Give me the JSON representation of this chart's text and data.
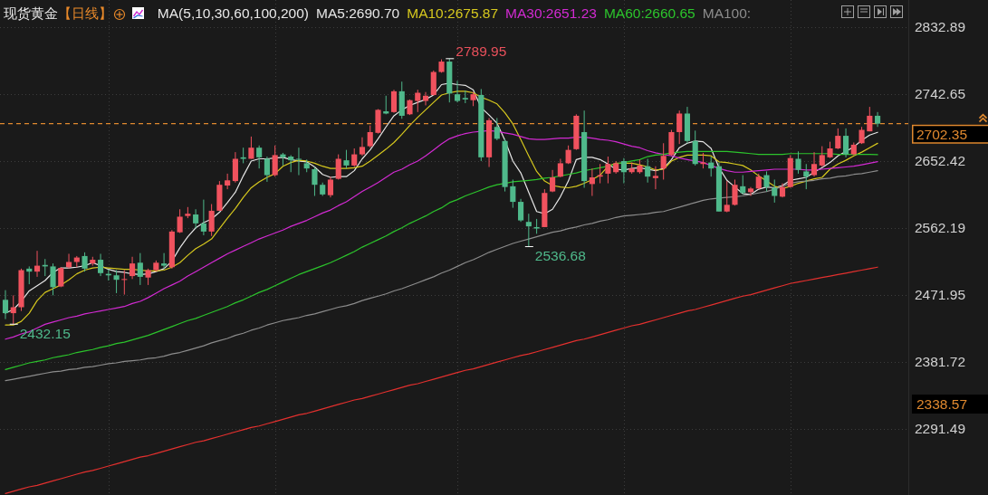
{
  "chart_data": {
    "type": "candlestick",
    "title": "现货黄金",
    "subtitle": "【日线】",
    "legend_title": "MA(5,10,30,60,100,200)",
    "legend": "top",
    "grid": "y",
    "ylim": [
      2202,
      2869
    ],
    "yticks": [
      2291.49,
      2381.72,
      2471.95,
      2562.19,
      2652.42,
      2742.65,
      2832.89
    ],
    "categories": [
      null,
      null,
      null,
      null,
      null,
      null,
      null,
      null,
      null,
      null,
      null,
      null,
      null,
      null,
      null,
      null,
      null,
      null,
      null,
      null,
      null,
      null,
      null,
      null,
      null,
      null,
      null,
      null,
      null,
      null,
      null,
      null,
      null,
      null,
      null,
      null,
      null,
      null,
      null,
      null,
      null,
      null,
      null,
      null,
      null,
      null,
      null,
      null,
      null,
      null,
      null,
      null,
      null,
      null,
      null,
      null,
      null,
      null,
      null,
      null,
      null,
      null,
      null,
      null,
      null,
      null,
      null,
      null,
      null,
      null,
      null,
      null,
      null,
      null,
      null,
      null,
      null,
      null,
      null,
      null,
      null,
      null,
      null,
      null,
      null,
      null,
      null,
      null,
      null,
      null,
      null,
      null,
      null,
      null,
      null,
      null,
      null,
      null,
      null,
      null,
      null,
      null,
      null,
      null,
      null,
      null,
      null,
      null,
      null,
      null,
      null
    ],
    "ohlc": [
      [
        2465,
        2478,
        2439,
        2447
      ],
      [
        2447,
        2471,
        2432.15,
        2455
      ],
      [
        2455,
        2507,
        2450,
        2505
      ],
      [
        2507,
        2510,
        2486,
        2503
      ],
      [
        2503,
        2531,
        2496,
        2511
      ],
      [
        2512,
        2520,
        2497,
        2510
      ],
      [
        2510,
        2514,
        2471,
        2482
      ],
      [
        2483,
        2509,
        2482,
        2508
      ],
      [
        2509,
        2527,
        2507,
        2516
      ],
      [
        2516,
        2524,
        2509,
        2522
      ],
      [
        2524,
        2529,
        2503,
        2507
      ],
      [
        2514,
        2523,
        2511,
        2519
      ],
      [
        2519,
        2527,
        2497,
        2501
      ],
      [
        2500,
        2506,
        2491,
        2498
      ],
      [
        2498,
        2505,
        2474,
        2492
      ],
      [
        2492,
        2505,
        2472,
        2493
      ],
      [
        2497,
        2523,
        2493,
        2514
      ],
      [
        2515,
        2528,
        2485,
        2496
      ],
      [
        2495,
        2507,
        2485,
        2505
      ],
      [
        2505,
        2518,
        2503,
        2515
      ],
      [
        2514,
        2528,
        2507,
        2511
      ],
      [
        2509,
        2559,
        2507,
        2557
      ],
      [
        2556,
        2587,
        2555,
        2577
      ],
      [
        2578,
        2590,
        2575,
        2581
      ],
      [
        2580,
        2587,
        2561,
        2568
      ],
      [
        2568,
        2600,
        2552,
        2557
      ],
      [
        2557,
        2594,
        2551,
        2585
      ],
      [
        2585,
        2625,
        2585,
        2620
      ],
      [
        2619,
        2635,
        2614,
        2626
      ],
      [
        2625,
        2664,
        2623,
        2655
      ],
      [
        2657,
        2670,
        2649,
        2655
      ],
      [
        2655,
        2685,
        2655,
        2670
      ],
      [
        2670,
        2673,
        2642,
        2657
      ],
      [
        2655,
        2658,
        2624,
        2633
      ],
      [
        2633,
        2673,
        2631,
        2660
      ],
      [
        2661,
        2663,
        2646,
        2657
      ],
      [
        2658,
        2660,
        2637,
        2653
      ],
      [
        2655,
        2670,
        2633,
        2654
      ],
      [
        2649,
        2654,
        2637,
        2642
      ],
      [
        2641,
        2644,
        2605,
        2620
      ],
      [
        2620,
        2623,
        2605,
        2607
      ],
      [
        2606,
        2631,
        2603,
        2627
      ],
      [
        2628,
        2661,
        2627,
        2655
      ],
      [
        2653,
        2667,
        2642,
        2646
      ],
      [
        2646,
        2669,
        2644,
        2661
      ],
      [
        2661,
        2684,
        2659,
        2671
      ],
      [
        2672,
        2700,
        2670,
        2691
      ],
      [
        2690,
        2722,
        2689,
        2721
      ],
      [
        2719,
        2740,
        2715,
        2716
      ],
      [
        2718,
        2748,
        2717,
        2746
      ],
      [
        2746,
        2759,
        2709,
        2713
      ],
      [
        2715,
        2735,
        2714,
        2734
      ],
      [
        2733,
        2748,
        2718,
        2744
      ],
      [
        2733,
        2745,
        2727,
        2740
      ],
      [
        2741,
        2774,
        2740,
        2772
      ],
      [
        2772,
        2789,
        2771,
        2786
      ],
      [
        2786,
        2789.95,
        2731,
        2743
      ],
      [
        2742,
        2760,
        2731,
        2733
      ],
      [
        2737,
        2747,
        2730,
        2735
      ],
      [
        2734,
        2745,
        2726,
        2742
      ],
      [
        2741,
        2749,
        2652,
        2657
      ],
      [
        2657,
        2710,
        2644,
        2707
      ],
      [
        2698,
        2710,
        2680,
        2682
      ],
      [
        2679,
        2682,
        2611,
        2617
      ],
      [
        2618,
        2627,
        2589,
        2597
      ],
      [
        2597,
        2601,
        2570,
        2572
      ],
      [
        2570,
        2581,
        2536.68,
        2564
      ],
      [
        2563,
        2574,
        2554,
        2561
      ],
      [
        2563,
        2614,
        2563,
        2609
      ],
      [
        2611,
        2640,
        2610,
        2630
      ],
      [
        2631,
        2655,
        2630,
        2649
      ],
      [
        2649,
        2673,
        2648,
        2667
      ],
      [
        2668,
        2715,
        2667,
        2713
      ],
      [
        2691,
        2720,
        2616,
        2625
      ],
      [
        2621,
        2642,
        2605,
        2630
      ],
      [
        2631,
        2648,
        2622,
        2633
      ],
      [
        2635,
        2658,
        2622,
        2648
      ],
      [
        2637,
        2652,
        2635,
        2649
      ],
      [
        2652,
        2656,
        2622,
        2637
      ],
      [
        2637,
        2650,
        2635,
        2642
      ],
      [
        2637,
        2654,
        2635,
        2646
      ],
      [
        2645,
        2655,
        2623,
        2631
      ],
      [
        2629,
        2645,
        2614,
        2632
      ],
      [
        2642,
        2676,
        2627,
        2659
      ],
      [
        2660,
        2694,
        2659,
        2691
      ],
      [
        2691,
        2720,
        2675,
        2716
      ],
      [
        2716,
        2725,
        2676,
        2679
      ],
      [
        2679,
        2693,
        2646,
        2648
      ],
      [
        2648,
        2663,
        2642,
        2650
      ],
      [
        2650,
        2658,
        2631,
        2642
      ],
      [
        2645,
        2650,
        2584,
        2584
      ],
      [
        2584,
        2625,
        2583,
        2593
      ],
      [
        2593,
        2627,
        2592,
        2620
      ],
      [
        2618,
        2633,
        2607,
        2609
      ],
      [
        2610,
        2617,
        2605,
        2615
      ],
      [
        2615,
        2635,
        2614,
        2631
      ],
      [
        2633,
        2638,
        2611,
        2617
      ],
      [
        2616,
        2627,
        2596,
        2605
      ],
      [
        2604,
        2622,
        2603,
        2617
      ],
      [
        2617,
        2660,
        2616,
        2656
      ],
      [
        2655,
        2665,
        2635,
        2640
      ],
      [
        2638,
        2648,
        2614,
        2631
      ],
      [
        2633,
        2664,
        2631,
        2648
      ],
      [
        2646,
        2672,
        2644,
        2660
      ],
      [
        2657,
        2678,
        2656,
        2669
      ],
      [
        2669,
        2696,
        2668,
        2686
      ],
      [
        2686,
        2696,
        2657,
        2661
      ],
      [
        2661,
        2677,
        2660,
        2674
      ],
      [
        2676,
        2698,
        2675,
        2694
      ],
      [
        2692,
        2725,
        2692,
        2713
      ],
      [
        2713,
        2718,
        2698,
        2702.35
      ]
    ],
    "colors": [
      "#4fb98b",
      "#f0525e",
      "#f0525e",
      "#4fb98b",
      "#f0525e",
      "#4fb98b",
      "#4fb98b",
      "#f0525e",
      "#f0525e",
      "#f0525e",
      "#4fb98b",
      "#f0525e",
      "#4fb98b",
      "#4fb98b",
      "#4fb98b",
      "#f0525e",
      "#f0525e",
      "#4fb98b",
      "#f0525e",
      "#f0525e",
      "#4fb98b",
      "#f0525e",
      "#f0525e",
      "#f0525e",
      "#4fb98b",
      "#4fb98b",
      "#f0525e",
      "#f0525e",
      "#f0525e",
      "#f0525e",
      "#4fb98b",
      "#f0525e",
      "#4fb98b",
      "#4fb98b",
      "#f0525e",
      "#4fb98b",
      "#4fb98b",
      "#4fb98b",
      "#4fb98b",
      "#4fb98b",
      "#4fb98b",
      "#f0525e",
      "#f0525e",
      "#4fb98b",
      "#f0525e",
      "#f0525e",
      "#f0525e",
      "#f0525e",
      "#4fb98b",
      "#f0525e",
      "#4fb98b",
      "#f0525e",
      "#f0525e",
      "#f0525e",
      "#f0525e",
      "#f0525e",
      "#4fb98b",
      "#4fb98b",
      "#4fb98b",
      "#f0525e",
      "#4fb98b",
      "#f0525e",
      "#4fb98b",
      "#4fb98b",
      "#4fb98b",
      "#4fb98b",
      "#4fb98b",
      "#4fb98b",
      "#f0525e",
      "#f0525e",
      "#f0525e",
      "#f0525e",
      "#f0525e",
      "#4fb98b",
      "#f0525e",
      "#f0525e",
      "#f0525e",
      "#f0525e",
      "#4fb98b",
      "#f0525e",
      "#f0525e",
      "#4fb98b",
      "#f0525e",
      "#f0525e",
      "#f0525e",
      "#f0525e",
      "#4fb98b",
      "#4fb98b",
      "#f0525e",
      "#4fb98b",
      "#4fb98b",
      "#f0525e",
      "#f0525e",
      "#4fb98b",
      "#f0525e",
      "#f0525e",
      "#4fb98b",
      "#4fb98b",
      "#f0525e",
      "#f0525e",
      "#4fb98b",
      "#4fb98b",
      "#f0525e",
      "#f0525e",
      "#f0525e",
      "#f0525e",
      "#4fb98b",
      "#f0525e",
      "#f0525e",
      "#f0525e",
      "#4fb98b"
    ],
    "series": [
      {
        "name": "MA5:2690.70",
        "type": "line",
        "color": "#e6e6e6",
        "values": [
          2447,
          2452,
          2463,
          2477,
          2484,
          2491,
          2502,
          2508,
          2508,
          2509,
          2511,
          2515,
          2511,
          2506,
          2503,
          2502,
          2500,
          2499,
          2500,
          2503,
          2507,
          2517,
          2535,
          2550,
          2562,
          2569,
          2574,
          2583,
          2596,
          2610,
          2632,
          2652,
          2655,
          2655,
          2656,
          2657,
          2654,
          2652,
          2651,
          2644,
          2634,
          2630,
          2631,
          2631,
          2639,
          2655,
          2667,
          2682,
          2698,
          2713,
          2721,
          2727,
          2731,
          2735,
          2741,
          2755,
          2757,
          2755,
          2754,
          2748,
          2724,
          2714,
          2703,
          2680,
          2652,
          2636,
          2610,
          2584,
          2581,
          2587,
          2604,
          2625,
          2654,
          2657,
          2657,
          2654,
          2648,
          2641,
          2640,
          2642,
          2643,
          2641,
          2639,
          2642,
          2654,
          2670,
          2676,
          2679,
          2678,
          2669,
          2643,
          2626,
          2617,
          2608,
          2607,
          2614,
          2617,
          2616,
          2619,
          2626,
          2628,
          2630,
          2637,
          2643,
          2650,
          2659,
          2665,
          2671,
          2680,
          2687,
          2690.7
        ]
      },
      {
        "name": "MA10:2675.87",
        "type": "line",
        "color": "#d6c81e",
        "values": [
          2431,
          2431,
          2436,
          2447,
          2464,
          2475,
          2480,
          2485,
          2492,
          2500,
          2505,
          2508,
          2509,
          2508,
          2507,
          2506,
          2506,
          2505,
          2504,
          2504,
          2505,
          2509,
          2515,
          2525,
          2534,
          2540,
          2547,
          2561,
          2575,
          2588,
          2603,
          2616,
          2624,
          2630,
          2635,
          2645,
          2650,
          2653,
          2652,
          2649,
          2645,
          2642,
          2642,
          2642,
          2643,
          2645,
          2652,
          2660,
          2668,
          2677,
          2688,
          2700,
          2711,
          2721,
          2731,
          2741,
          2744,
          2746,
          2746,
          2744,
          2738,
          2734,
          2729,
          2717,
          2702,
          2681,
          2659,
          2638,
          2625,
          2619,
          2617,
          2616,
          2618,
          2622,
          2627,
          2633,
          2645,
          2649,
          2649,
          2649,
          2647,
          2644,
          2640,
          2641,
          2652,
          2657,
          2660,
          2660,
          2660,
          2659,
          2651,
          2650,
          2648,
          2646,
          2640,
          2632,
          2625,
          2618,
          2615,
          2618,
          2622,
          2625,
          2628,
          2630,
          2641,
          2648,
          2653,
          2659,
          2664,
          2670,
          2675.87
        ]
      },
      {
        "name": "MA30:2651.23",
        "type": "line",
        "color": "#d22ad2",
        "values": [
          2412,
          2415,
          2419,
          2422,
          2427,
          2432,
          2435,
          2438,
          2441,
          2443,
          2446,
          2448,
          2450,
          2452,
          2454,
          2456,
          2460,
          2463,
          2468,
          2474,
          2480,
          2485,
          2490,
          2497,
          2503,
          2509,
          2515,
          2521,
          2527,
          2532,
          2537,
          2542,
          2547,
          2551,
          2555,
          2559,
          2564,
          2568,
          2572,
          2577,
          2582,
          2586,
          2592,
          2597,
          2604,
          2611,
          2617,
          2623,
          2630,
          2637,
          2641,
          2647,
          2652,
          2659,
          2667,
          2675,
          2682,
          2686,
          2689,
          2691,
          2692,
          2693,
          2692,
          2690,
          2688,
          2685,
          2682,
          2681,
          2681,
          2682,
          2683,
          2683,
          2684,
          2684,
          2683,
          2681,
          2680,
          2678,
          2675,
          2672,
          2670,
          2666,
          2663,
          2661,
          2659,
          2656,
          2654,
          2652,
          2650,
          2646,
          2642,
          2639,
          2637,
          2637,
          2638,
          2639,
          2640,
          2641,
          2641,
          2641,
          2641,
          2640,
          2640,
          2641,
          2642,
          2643,
          2644,
          2645,
          2647,
          2649,
          2651.23
        ]
      },
      {
        "name": "MA60:2660.65",
        "type": "line",
        "color": "#2cc42c",
        "values": [
          2371,
          2374,
          2377,
          2380,
          2382,
          2384,
          2387,
          2389,
          2391,
          2394,
          2396,
          2398,
          2401,
          2403,
          2406,
          2408,
          2411,
          2414,
          2417,
          2421,
          2425,
          2429,
          2433,
          2437,
          2440,
          2444,
          2448,
          2452,
          2456,
          2461,
          2465,
          2470,
          2475,
          2479,
          2484,
          2489,
          2494,
          2499,
          2503,
          2507,
          2511,
          2515,
          2520,
          2525,
          2530,
          2536,
          2541,
          2546,
          2551,
          2557,
          2562,
          2568,
          2573,
          2578,
          2584,
          2589,
          2596,
          2600,
          2605,
          2609,
          2613,
          2617,
          2620,
          2622,
          2624,
          2625,
          2626,
          2627,
          2629,
          2630,
          2632,
          2634,
          2636,
          2639,
          2641,
          2643,
          2645,
          2648,
          2650,
          2652,
          2654,
          2658,
          2660,
          2661,
          2663,
          2664,
          2665,
          2665,
          2665,
          2665,
          2665,
          2665,
          2664,
          2663,
          2662,
          2661,
          2661,
          2661,
          2661,
          2662,
          2662,
          2662,
          2662,
          2662,
          2662,
          2661,
          2661,
          2661,
          2661,
          2661,
          2660.65
        ]
      },
      {
        "name": "MA100:",
        "type": "line",
        "color": "#8c8c8c",
        "values": [
          2356,
          2358,
          2360,
          2362,
          2364,
          2366,
          2368,
          2369,
          2371,
          2372,
          2374,
          2375,
          2377,
          2379,
          2380,
          2382,
          2383,
          2384,
          2386,
          2387,
          2389,
          2392,
          2394,
          2397,
          2400,
          2403,
          2407,
          2410,
          2413,
          2417,
          2420,
          2424,
          2427,
          2431,
          2434,
          2437,
          2439,
          2441,
          2444,
          2446,
          2449,
          2452,
          2455,
          2457,
          2460,
          2464,
          2467,
          2470,
          2473,
          2477,
          2480,
          2484,
          2488,
          2492,
          2496,
          2501,
          2505,
          2510,
          2515,
          2519,
          2524,
          2529,
          2533,
          2537,
          2541,
          2544,
          2547,
          2550,
          2553,
          2556,
          2558,
          2561,
          2563,
          2566,
          2568,
          2571,
          2573,
          2576,
          2578,
          2579,
          2580,
          2581,
          2583,
          2584,
          2587,
          2590,
          2593,
          2596,
          2599,
          2601,
          2602,
          2603,
          2604,
          2605,
          2607,
          2609,
          2611,
          2614,
          2618,
          2622,
          2624,
          2625,
          2626,
          2628,
          2629,
          2631,
          2632,
          2634,
          2635,
          2637,
          2639
        ]
      },
      {
        "type": "line",
        "color": "#e2302e",
        "values": [
          2204,
          2207,
          2210,
          2213,
          2215,
          2218,
          2221,
          2224,
          2227,
          2230,
          2233,
          2235,
          2238,
          2241,
          2244,
          2247,
          2250,
          2253,
          2255,
          2258,
          2261,
          2264,
          2267,
          2270,
          2273,
          2275,
          2278,
          2281,
          2284,
          2287,
          2290,
          2293,
          2295,
          2298,
          2301,
          2304,
          2307,
          2310,
          2312,
          2315,
          2318,
          2321,
          2324,
          2327,
          2330,
          2332,
          2335,
          2338,
          2341,
          2344,
          2347,
          2350,
          2352,
          2355,
          2358,
          2361,
          2364,
          2367,
          2370,
          2372,
          2375,
          2378,
          2381,
          2384,
          2387,
          2390,
          2392,
          2395,
          2398,
          2401,
          2404,
          2407,
          2410,
          2412,
          2415,
          2418,
          2421,
          2424,
          2427,
          2430,
          2432,
          2435,
          2438,
          2441,
          2444,
          2447,
          2450,
          2452,
          2455,
          2458,
          2461,
          2464,
          2467,
          2470,
          2472,
          2475,
          2478,
          2481,
          2484,
          2487,
          2489,
          2491,
          2493,
          2495,
          2497,
          2499,
          2501,
          2503,
          2505,
          2507,
          2509
        ]
      }
    ],
    "ref_lines": [
      {
        "axis": "y",
        "value": 2702.35,
        "label": "2702.35",
        "color": "#e0892f",
        "line_style": "dashed"
      }
    ],
    "annotations": [
      "2789.95",
      "2536.68",
      "2432.15",
      "2338.57"
    ]
  }
}
